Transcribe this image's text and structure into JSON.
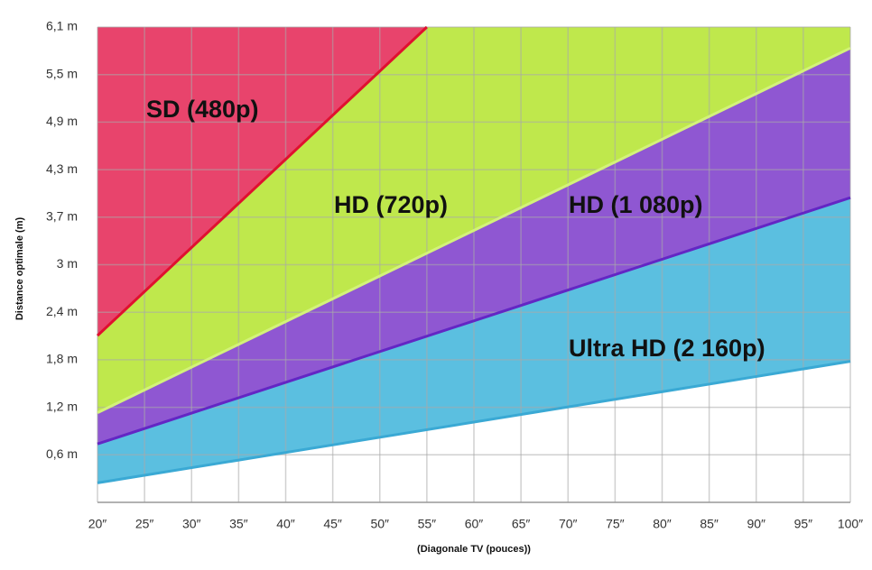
{
  "chart_data": {
    "type": "area",
    "y_label": "Distance optimale (m)",
    "x_label": "(Diagonale TV (pouces))",
    "xlim": [
      20,
      100
    ],
    "ylim": [
      0,
      6.1
    ],
    "xticks": [
      {
        "value": 20,
        "label": "20″"
      },
      {
        "value": 25,
        "label": "25″"
      },
      {
        "value": 30,
        "label": "30″"
      },
      {
        "value": 35,
        "label": "35″"
      },
      {
        "value": 40,
        "label": "40″"
      },
      {
        "value": 45,
        "label": "45″"
      },
      {
        "value": 50,
        "label": "50″"
      },
      {
        "value": 55,
        "label": "55″"
      },
      {
        "value": 60,
        "label": "60″"
      },
      {
        "value": 65,
        "label": "65″"
      },
      {
        "value": 70,
        "label": "70″"
      },
      {
        "value": 75,
        "label": "75″"
      },
      {
        "value": 80,
        "label": "80″"
      },
      {
        "value": 85,
        "label": "85″"
      },
      {
        "value": 90,
        "label": "90″"
      },
      {
        "value": 95,
        "label": "95″"
      },
      {
        "value": 100,
        "label": "100″"
      }
    ],
    "yticks": [
      {
        "value": 0.61,
        "label": "0,6 m"
      },
      {
        "value": 1.22,
        "label": "1,2 m"
      },
      {
        "value": 1.83,
        "label": "1,8 m"
      },
      {
        "value": 2.44,
        "label": "2,4 m"
      },
      {
        "value": 3.05,
        "label": "3 m"
      },
      {
        "value": 3.66,
        "label": "3,7 m"
      },
      {
        "value": 4.27,
        "label": "4,3 m"
      },
      {
        "value": 4.88,
        "label": "4,9 m"
      },
      {
        "value": 5.49,
        "label": "5,5 m"
      },
      {
        "value": 6.1,
        "label": "6,1 m"
      }
    ],
    "grid": true,
    "series": [
      {
        "name": "Ultra HD (2 160p)",
        "color": "#5bbfe0",
        "line_color": "#3aa9d4",
        "x": [
          20,
          100
        ],
        "values": [
          0.25,
          1.81
        ]
      },
      {
        "name": "HD (1 080p)",
        "color": "#8f57d2",
        "line_color": "#6326c4",
        "x": [
          20,
          100
        ],
        "values": [
          0.75,
          3.91
        ]
      },
      {
        "name": "HD (720p)",
        "color": "#bfe84c",
        "line_color": "#d3f27a",
        "x": [
          20,
          100
        ],
        "values": [
          1.15,
          5.83
        ]
      },
      {
        "name": "SD (480p)",
        "color": "#e8446c",
        "line_color": "#e0102f",
        "x": [
          20,
          55
        ],
        "values": [
          2.14,
          6.1
        ]
      }
    ]
  }
}
